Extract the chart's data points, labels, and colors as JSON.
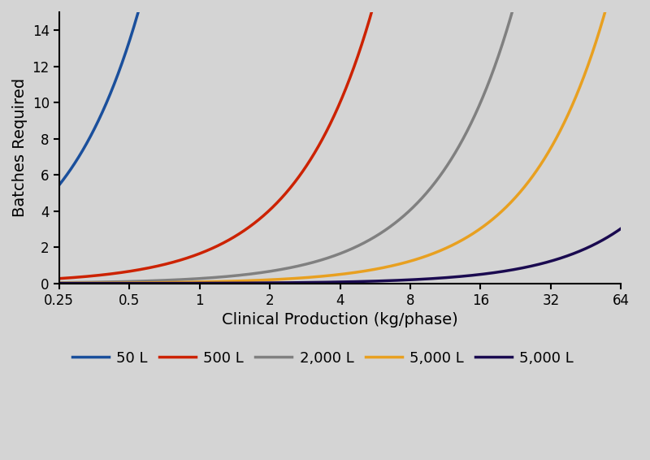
{
  "title": "",
  "xlabel": "Clinical Production (kg/phase)",
  "ylabel": "Batches Required",
  "background_color": "#d4d4d4",
  "plot_bg_color": "#d4d4d4",
  "ylim": [
    0,
    15
  ],
  "xlim_log": [
    0.25,
    64
  ],
  "xticks": [
    0.25,
    0.5,
    1,
    2,
    4,
    8,
    16,
    32,
    64
  ],
  "xtick_labels": [
    "0.25",
    "0.5",
    "1",
    "2",
    "4",
    "8",
    "16",
    "32",
    "64"
  ],
  "yticks": [
    0,
    2,
    4,
    6,
    8,
    10,
    12,
    14
  ],
  "series": [
    {
      "label": "50 L",
      "color": "#1a4f9c",
      "scale": 0.068,
      "power": 1.3
    },
    {
      "label": "500 L",
      "color": "#cc2200",
      "scale": 0.68,
      "power": 1.3
    },
    {
      "label": "2,000 L",
      "color": "#808080",
      "scale": 2.72,
      "power": 1.3
    },
    {
      "label": "5,000 L",
      "color": "#e8a020",
      "scale": 6.8,
      "power": 1.3
    },
    {
      "label": "5,000 L",
      "color": "#1a0a50",
      "scale": 27.2,
      "power": 1.3
    }
  ],
  "linewidth": 2.5,
  "font_size": 13,
  "axis_label_fontsize": 14,
  "tick_fontsize": 12
}
